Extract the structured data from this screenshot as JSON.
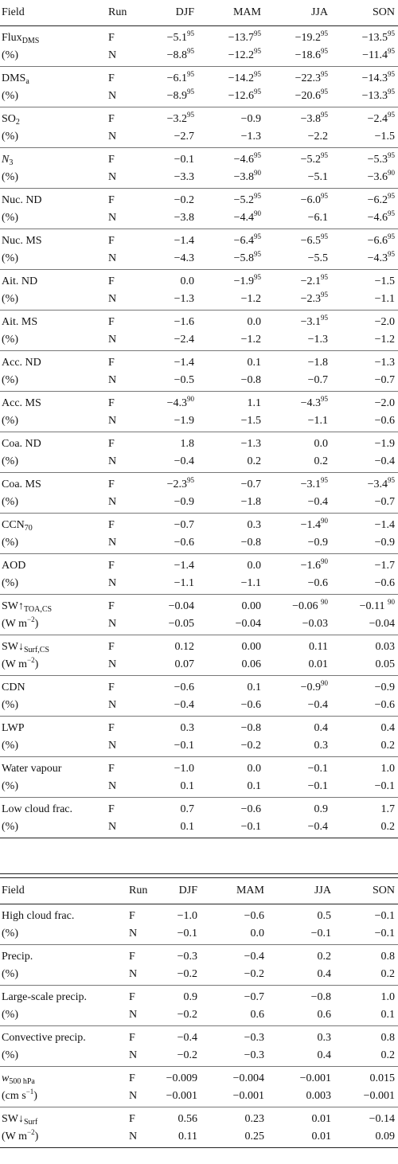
{
  "header": {
    "field": "Field",
    "run": "Run",
    "seasons": [
      "DJF",
      "MAM",
      "JJA",
      "SON"
    ]
  },
  "table1": [
    {
      "f1": "Flux",
      "f1sub": "DMS",
      "f2": "(%)",
      "r1": "F",
      "r2": "N",
      "v1": [
        [
          "−5.1",
          "95"
        ],
        [
          "−13.7",
          "95"
        ],
        [
          "−19.2",
          "95"
        ],
        [
          "−13.5",
          "95"
        ]
      ],
      "v2": [
        [
          "−8.8",
          "95"
        ],
        [
          "−12.2",
          "95"
        ],
        [
          "−18.6",
          "95"
        ],
        [
          "−11.4",
          "95"
        ]
      ]
    },
    {
      "f1": "DMS",
      "f1sub": "a",
      "f2": "(%)",
      "r1": "F",
      "r2": "N",
      "v1": [
        [
          "−6.1",
          "95"
        ],
        [
          "−14.2",
          "95"
        ],
        [
          "−22.3",
          "95"
        ],
        [
          "−14.3",
          "95"
        ]
      ],
      "v2": [
        [
          "−8.9",
          "95"
        ],
        [
          "−12.6",
          "95"
        ],
        [
          "−20.6",
          "95"
        ],
        [
          "−13.3",
          "95"
        ]
      ]
    },
    {
      "f1": "SO",
      "f1sub": "2",
      "f2": "(%)",
      "r1": "F",
      "r2": "N",
      "v1": [
        [
          "−3.2",
          "95"
        ],
        [
          "−0.9",
          ""
        ],
        [
          "−3.8",
          "95"
        ],
        [
          "−2.4",
          "95"
        ]
      ],
      "v2": [
        [
          "−2.7",
          ""
        ],
        [
          "−1.3",
          ""
        ],
        [
          "−2.2",
          ""
        ],
        [
          "−1.5",
          ""
        ]
      ]
    },
    {
      "f1": "N",
      "f1sub": "3",
      "f1ital": true,
      "f2": "(%)",
      "r1": "F",
      "r2": "N",
      "v1": [
        [
          "−0.1",
          ""
        ],
        [
          "−4.6",
          "95"
        ],
        [
          "−5.2",
          "95"
        ],
        [
          "−5.3",
          "95"
        ]
      ],
      "v2": [
        [
          "−3.3",
          ""
        ],
        [
          "−3.8",
          "90"
        ],
        [
          "−5.1",
          ""
        ],
        [
          "−3.6",
          "90"
        ]
      ]
    },
    {
      "f1": "Nuc. ND",
      "f2": "(%)",
      "r1": "F",
      "r2": "N",
      "v1": [
        [
          "−0.2",
          ""
        ],
        [
          "−5.2",
          "95"
        ],
        [
          "−6.0",
          "95"
        ],
        [
          "−6.2",
          "95"
        ]
      ],
      "v2": [
        [
          "−3.8",
          ""
        ],
        [
          "−4.4",
          "90"
        ],
        [
          "−6.1",
          ""
        ],
        [
          "−4.6",
          "95"
        ]
      ]
    },
    {
      "f1": "Nuc. MS",
      "f2": "(%)",
      "r1": "F",
      "r2": "N",
      "v1": [
        [
          "−1.4",
          ""
        ],
        [
          "−6.4",
          "95"
        ],
        [
          "−6.5",
          "95"
        ],
        [
          "−6.6",
          "95"
        ]
      ],
      "v2": [
        [
          "−4.3",
          ""
        ],
        [
          "−5.8",
          "95"
        ],
        [
          "−5.5",
          ""
        ],
        [
          "−4.3",
          "95"
        ]
      ]
    },
    {
      "f1": "Ait. ND",
      "f2": "(%)",
      "r1": "F",
      "r2": "N",
      "v1": [
        [
          "0.0",
          ""
        ],
        [
          "−1.9",
          "95"
        ],
        [
          "−2.1",
          "95"
        ],
        [
          "−1.5",
          ""
        ]
      ],
      "v2": [
        [
          "−1.3",
          ""
        ],
        [
          "−1.2",
          ""
        ],
        [
          "−2.3",
          "95"
        ],
        [
          "−1.1",
          ""
        ]
      ]
    },
    {
      "f1": "Ait. MS",
      "f2": "(%)",
      "r1": "F",
      "r2": "N",
      "v1": [
        [
          "−1.6",
          ""
        ],
        [
          "0.0",
          ""
        ],
        [
          "−3.1",
          "95"
        ],
        [
          "−2.0",
          ""
        ]
      ],
      "v2": [
        [
          "−2.4",
          ""
        ],
        [
          "−1.2",
          ""
        ],
        [
          "−1.3",
          ""
        ],
        [
          "−1.2",
          ""
        ]
      ]
    },
    {
      "f1": "Acc. ND",
      "f2": "(%)",
      "r1": "F",
      "r2": "N",
      "v1": [
        [
          "−1.4",
          ""
        ],
        [
          "0.1",
          ""
        ],
        [
          "−1.8",
          ""
        ],
        [
          "−1.3",
          ""
        ]
      ],
      "v2": [
        [
          "−0.5",
          ""
        ],
        [
          "−0.8",
          ""
        ],
        [
          "−0.7",
          ""
        ],
        [
          "−0.7",
          ""
        ]
      ]
    },
    {
      "f1": "Acc. MS",
      "f2": "(%)",
      "r1": "F",
      "r2": "N",
      "v1": [
        [
          "−4.3",
          "90"
        ],
        [
          "1.1",
          ""
        ],
        [
          "−4.3",
          "95"
        ],
        [
          "−2.0",
          ""
        ]
      ],
      "v2": [
        [
          "−1.9",
          ""
        ],
        [
          "−1.5",
          ""
        ],
        [
          "−1.1",
          ""
        ],
        [
          "−0.6",
          ""
        ]
      ]
    },
    {
      "f1": "Coa. ND",
      "f2": "(%)",
      "r1": "F",
      "r2": "N",
      "v1": [
        [
          "1.8",
          ""
        ],
        [
          "−1.3",
          ""
        ],
        [
          "0.0",
          ""
        ],
        [
          "−1.9",
          ""
        ]
      ],
      "v2": [
        [
          "−0.4",
          ""
        ],
        [
          "0.2",
          ""
        ],
        [
          "0.2",
          ""
        ],
        [
          "−0.4",
          ""
        ]
      ]
    },
    {
      "f1": "Coa. MS",
      "f2": "(%)",
      "r1": "F",
      "r2": "N",
      "v1": [
        [
          "−2.3",
          "95"
        ],
        [
          "−0.7",
          ""
        ],
        [
          "−3.1",
          "95"
        ],
        [
          "−3.4",
          "95"
        ]
      ],
      "v2": [
        [
          "−0.9",
          ""
        ],
        [
          "−1.8",
          ""
        ],
        [
          "−0.4",
          ""
        ],
        [
          "−0.7",
          ""
        ]
      ]
    },
    {
      "f1": "CCN",
      "f1sub": "70",
      "f2": "(%)",
      "r1": "F",
      "r2": "N",
      "v1": [
        [
          "−0.7",
          ""
        ],
        [
          "0.3",
          ""
        ],
        [
          "−1.4",
          "90"
        ],
        [
          "−1.4",
          ""
        ]
      ],
      "v2": [
        [
          "−0.6",
          ""
        ],
        [
          "−0.8",
          ""
        ],
        [
          "−0.9",
          ""
        ],
        [
          "−0.9",
          ""
        ]
      ]
    },
    {
      "f1": "AOD",
      "f2": "(%)",
      "r1": "F",
      "r2": "N",
      "v1": [
        [
          "−1.4",
          ""
        ],
        [
          "0.0",
          ""
        ],
        [
          "−1.6",
          "90"
        ],
        [
          "−1.7",
          ""
        ]
      ],
      "v2": [
        [
          "−1.1",
          ""
        ],
        [
          "−1.1",
          ""
        ],
        [
          "−0.6",
          ""
        ],
        [
          "−0.6",
          ""
        ]
      ]
    },
    {
      "f1": "SW↑",
      "f1sub": "TOA,CS",
      "f2": "(W m",
      "f2sup": "−2",
      "f2tail": ")",
      "r1": "F",
      "r2": "N",
      "v1": [
        [
          "−0.04",
          ""
        ],
        [
          "0.00",
          ""
        ],
        [
          "−0.06 ",
          "90"
        ],
        [
          "−0.11 ",
          "90"
        ]
      ],
      "v2": [
        [
          "−0.05",
          ""
        ],
        [
          "−0.04",
          ""
        ],
        [
          "−0.03",
          ""
        ],
        [
          "−0.04",
          ""
        ]
      ]
    },
    {
      "f1": "SW↓",
      "f1sub": "Surf,CS",
      "f2": "(W m",
      "f2sup": "−2",
      "f2tail": ")",
      "r1": "F",
      "r2": "N",
      "v1": [
        [
          "0.12",
          ""
        ],
        [
          "0.00",
          ""
        ],
        [
          "0.11",
          ""
        ],
        [
          "0.03",
          ""
        ]
      ],
      "v2": [
        [
          "0.07",
          ""
        ],
        [
          "0.06",
          ""
        ],
        [
          "0.01",
          ""
        ],
        [
          "0.05",
          ""
        ]
      ]
    },
    {
      "f1": "CDN",
      "f2": "(%)",
      "r1": "F",
      "r2": "N",
      "v1": [
        [
          "−0.6",
          ""
        ],
        [
          "0.1",
          ""
        ],
        [
          "−0.9",
          "90"
        ],
        [
          "−0.9",
          ""
        ]
      ],
      "v2": [
        [
          "−0.4",
          ""
        ],
        [
          "−0.6",
          ""
        ],
        [
          "−0.4",
          ""
        ],
        [
          "−0.6",
          ""
        ]
      ]
    },
    {
      "f1": "LWP",
      "f2": "(%)",
      "r1": "F",
      "r2": "N",
      "v1": [
        [
          "0.3",
          ""
        ],
        [
          "−0.8",
          ""
        ],
        [
          "0.4",
          ""
        ],
        [
          "0.4",
          ""
        ]
      ],
      "v2": [
        [
          "−0.1",
          ""
        ],
        [
          "−0.2",
          ""
        ],
        [
          "0.3",
          ""
        ],
        [
          "0.2",
          ""
        ]
      ]
    },
    {
      "f1": "Water vapour",
      "f2": "(%)",
      "r1": "F",
      "r2": "N",
      "v1": [
        [
          "−1.0",
          ""
        ],
        [
          "0.0",
          ""
        ],
        [
          "−0.1",
          ""
        ],
        [
          "1.0",
          ""
        ]
      ],
      "v2": [
        [
          "0.1",
          ""
        ],
        [
          "0.1",
          ""
        ],
        [
          "−0.1",
          ""
        ],
        [
          "−0.1",
          ""
        ]
      ]
    },
    {
      "f1": "Low cloud frac.",
      "f2": "(%)",
      "r1": "F",
      "r2": "N",
      "v1": [
        [
          "0.7",
          ""
        ],
        [
          "−0.6",
          ""
        ],
        [
          "0.9",
          ""
        ],
        [
          "1.7",
          ""
        ]
      ],
      "v2": [
        [
          "0.1",
          ""
        ],
        [
          "−0.1",
          ""
        ],
        [
          "−0.4",
          ""
        ],
        [
          "0.2",
          ""
        ]
      ]
    }
  ],
  "table2": [
    {
      "f1": "High cloud frac.",
      "f2": "(%)",
      "r1": "F",
      "r2": "N",
      "v1": [
        [
          "−1.0",
          ""
        ],
        [
          "−0.6",
          ""
        ],
        [
          "0.5",
          ""
        ],
        [
          "−0.1",
          ""
        ]
      ],
      "v2": [
        [
          "−0.1",
          ""
        ],
        [
          "0.0",
          ""
        ],
        [
          "−0.1",
          ""
        ],
        [
          "−0.1",
          ""
        ]
      ]
    },
    {
      "f1": "Precip.",
      "f2": "(%)",
      "r1": "F",
      "r2": "N",
      "v1": [
        [
          "−0.3",
          ""
        ],
        [
          "−0.4",
          ""
        ],
        [
          "0.2",
          ""
        ],
        [
          "0.8",
          ""
        ]
      ],
      "v2": [
        [
          "−0.2",
          ""
        ],
        [
          "−0.2",
          ""
        ],
        [
          "0.4",
          ""
        ],
        [
          "0.2",
          ""
        ]
      ]
    },
    {
      "f1": "Large-scale precip.",
      "f2": "(%)",
      "r1": "F",
      "r2": "N",
      "v1": [
        [
          "0.9",
          ""
        ],
        [
          "−0.7",
          ""
        ],
        [
          "−0.8",
          ""
        ],
        [
          "1.0",
          ""
        ]
      ],
      "v2": [
        [
          "−0.2",
          ""
        ],
        [
          "0.6",
          ""
        ],
        [
          "0.6",
          ""
        ],
        [
          "0.1",
          ""
        ]
      ]
    },
    {
      "f1": "Convective precip.",
      "f2": "(%)",
      "r1": "F",
      "r2": "N",
      "v1": [
        [
          "−0.4",
          ""
        ],
        [
          "−0.3",
          ""
        ],
        [
          "0.3",
          ""
        ],
        [
          "0.8",
          ""
        ]
      ],
      "v2": [
        [
          "−0.2",
          ""
        ],
        [
          "−0.3",
          ""
        ],
        [
          "0.4",
          ""
        ],
        [
          "0.2",
          ""
        ]
      ]
    },
    {
      "f1": "w",
      "f1sub": "500 hPa",
      "f1ital": true,
      "f2": "(cm s",
      "f2sup": "−1",
      "f2tail": ")",
      "r1": "F",
      "r2": "N",
      "v1": [
        [
          "−0.009",
          ""
        ],
        [
          "−0.004",
          ""
        ],
        [
          "−0.001",
          ""
        ],
        [
          "0.015",
          ""
        ]
      ],
      "v2": [
        [
          "−0.001",
          ""
        ],
        [
          "−0.001",
          ""
        ],
        [
          "0.003",
          ""
        ],
        [
          "−0.001",
          ""
        ]
      ]
    },
    {
      "f1": "SW↓",
      "f1sub": "Surf",
      "f2": "(W m",
      "f2sup": "−2",
      "f2tail": ")",
      "r1": "F",
      "r2": "N",
      "v1": [
        [
          "0.56",
          ""
        ],
        [
          "0.23",
          ""
        ],
        [
          "0.01",
          ""
        ],
        [
          "−0.14",
          ""
        ]
      ],
      "v2": [
        [
          "0.11",
          ""
        ],
        [
          "0.25",
          ""
        ],
        [
          "0.01",
          ""
        ],
        [
          "0.09",
          ""
        ]
      ]
    }
  ]
}
